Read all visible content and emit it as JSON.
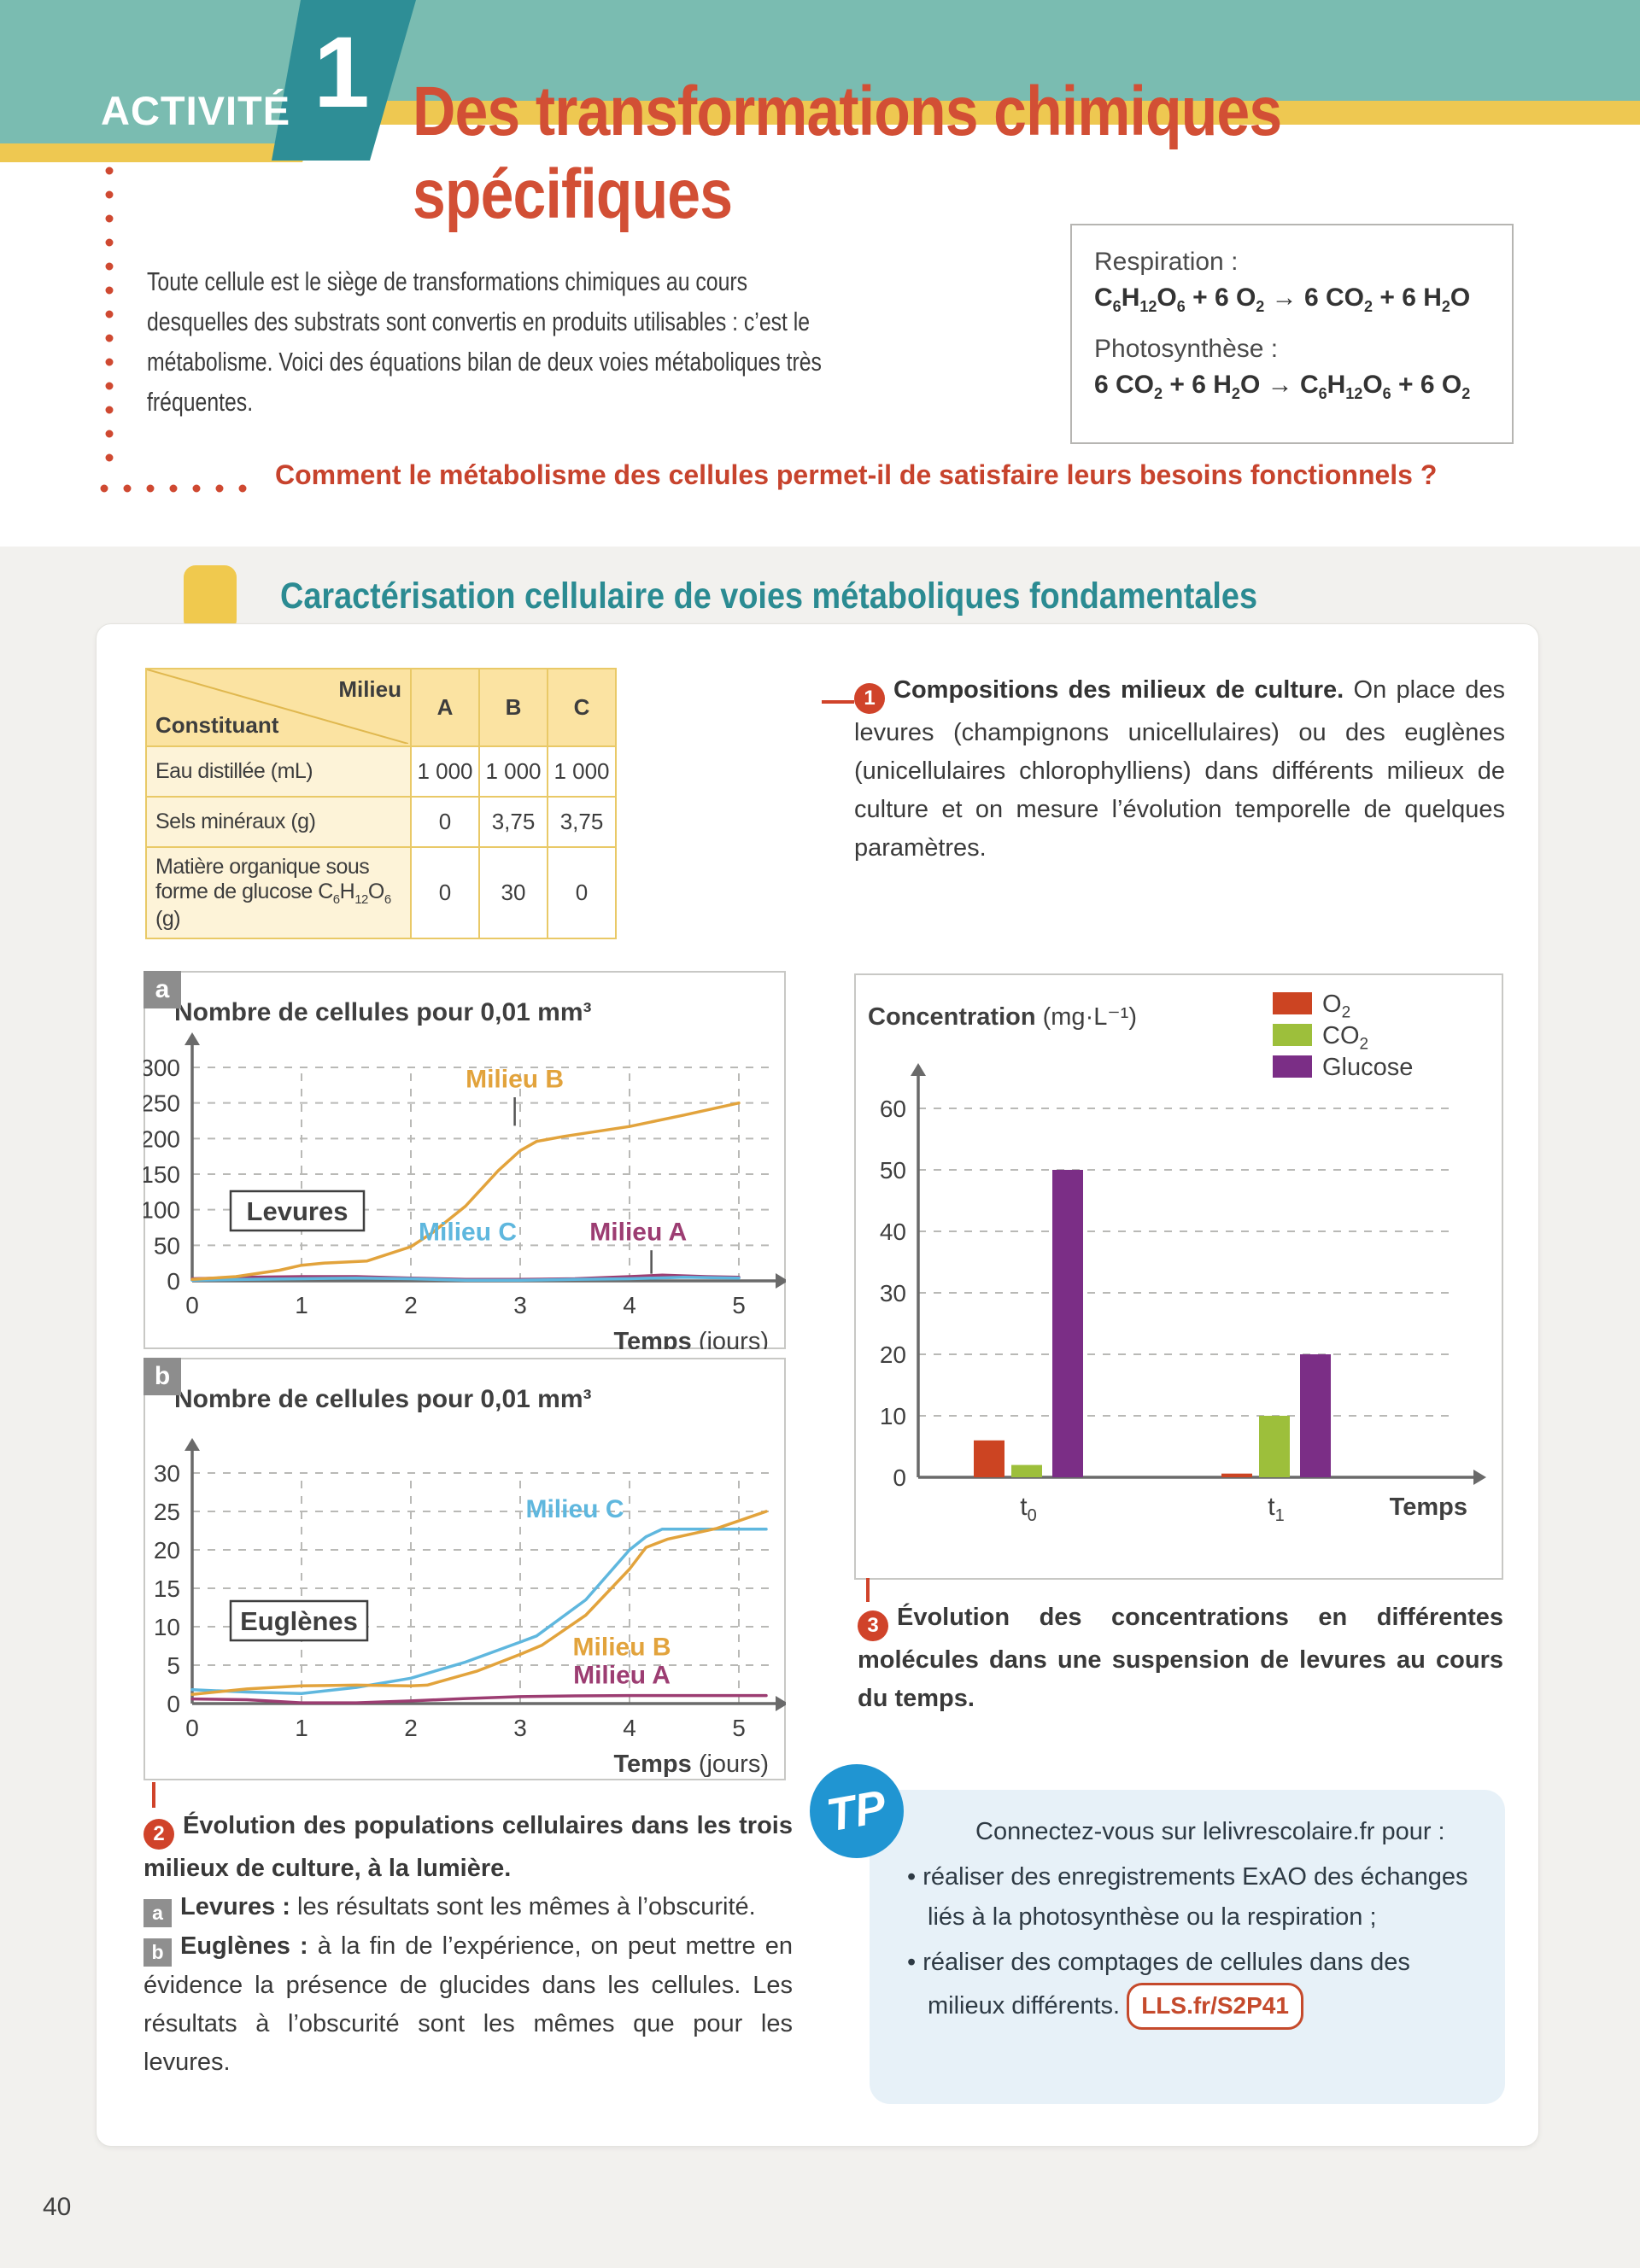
{
  "page": {
    "number": "40"
  },
  "colors": {
    "teal_light": "#7abcb1",
    "teal_dark": "#2e8e96",
    "yellow": "#eec851",
    "title_red": "#d24f35",
    "question_red": "#c7432d",
    "section_teal": "#2b8b92",
    "badge_red": "#d0432a",
    "badge_gray": "#8f8f8f",
    "milieu_b_orange": "#e2a33c",
    "milieu_c_blue": "#5fb7de",
    "milieu_a_purple": "#9c3d72",
    "bar_o2_red": "#cc4422",
    "bar_co2_green": "#9dbf3b",
    "bar_glucose_purple": "#7b2e86",
    "tp_blue": "#2095d2"
  },
  "header": {
    "activity_label": "ACTIVITÉ",
    "activity_number": "1",
    "title_line1": "Des transformations chimiques",
    "title_line2": "spécifiques",
    "intro": "Toute cellule est le siège de transformations chimiques au cours desquelles des substrats sont convertis en produits utilisables : c’est le métabolisme. Voici des équations bilan de deux voies métaboliques très fréquentes.",
    "equations_box": {
      "resp_label": "Respiration :",
      "resp_eq": "C|6|H|12|O|6| + 6 O|2| → 6 CO|2| + 6 H|2|O",
      "photo_label": "Photosynthèse :",
      "photo_eq": "6 CO|2| + 6 H|2|O → C|6|H|12|O|6| + 6 O|2|"
    },
    "question": "Comment le métabolisme des cellules permet-il de satisfaire leurs besoins fonctionnels ?"
  },
  "section": {
    "heading": "Caractérisation cellulaire de voies métaboliques fondamentales"
  },
  "table": {
    "corner_top": "Milieu",
    "corner_bottom": "Constituant",
    "columns": [
      "A",
      "B",
      "C"
    ],
    "rows": [
      {
        "label": "Eau distillée (mL)",
        "values": [
          "1 000",
          "1 000",
          "1 000"
        ]
      },
      {
        "label": "Sels minéraux (g)",
        "values": [
          "0",
          "3,75",
          "3,75"
        ]
      },
      {
        "label": "Matière organique sous forme de glucose C|6|H|12|O|6| (g)",
        "values": [
          "0",
          "30",
          "0"
        ]
      }
    ]
  },
  "doc1": {
    "badge": "1",
    "lead": "Compositions des milieux de culture.",
    "text": " On place des levures (champignons unicellulaires) ou des euglènes (unicellulaires chlorophylliens) dans différents milieux de culture et on mesure l’évolution temporelle de quelques paramètres."
  },
  "chart_data": [
    {
      "id": "levures",
      "type": "line",
      "panel_badge": "a",
      "title": "Nombre de cellules pour 0,01 mm³",
      "box_label": "Levures",
      "xlabel_bold": "Temps",
      "xlabel_normal": " (jours)",
      "x_ticks": [
        0,
        1,
        2,
        3,
        4,
        5
      ],
      "xlim": [
        0,
        5.3
      ],
      "ylim": [
        0,
        300
      ],
      "y_ticks": [
        0,
        50,
        100,
        150,
        200,
        250,
        300
      ],
      "grid": true,
      "series": [
        {
          "name": "Milieu A",
          "color": "#9c3d72",
          "points": [
            [
              0,
              3
            ],
            [
              0.5,
              5
            ],
            [
              1,
              6
            ],
            [
              1.5,
              6
            ],
            [
              2,
              4
            ],
            [
              2.5,
              2
            ],
            [
              3,
              2
            ],
            [
              3.5,
              3
            ],
            [
              4,
              6
            ],
            [
              4.3,
              8
            ],
            [
              4.7,
              6
            ],
            [
              5,
              5
            ]
          ]
        },
        {
          "name": "Milieu C",
          "color": "#5fb7de",
          "points": [
            [
              0,
              1
            ],
            [
              0.5,
              2
            ],
            [
              1,
              3
            ],
            [
              1.5,
              4
            ],
            [
              2,
              3
            ],
            [
              2.5,
              1
            ],
            [
              3,
              1
            ],
            [
              3.5,
              2
            ],
            [
              4,
              3
            ],
            [
              4.5,
              5
            ],
            [
              5,
              4
            ]
          ]
        },
        {
          "name": "Milieu B",
          "color": "#e2a33c",
          "points": [
            [
              0,
              2
            ],
            [
              0.4,
              6
            ],
            [
              0.8,
              15
            ],
            [
              1,
              22
            ],
            [
              1.2,
              25
            ],
            [
              1.6,
              28
            ],
            [
              2,
              48
            ],
            [
              2.2,
              68
            ],
            [
              2.5,
              105
            ],
            [
              2.8,
              155
            ],
            [
              3,
              183
            ],
            [
              3.15,
              196
            ],
            [
              3.4,
              203
            ],
            [
              4,
              217
            ],
            [
              4.5,
              233
            ],
            [
              5,
              250
            ]
          ]
        }
      ],
      "annotations": [
        {
          "text": "Milieu B",
          "color": "#e2a33c",
          "vx": 2.95,
          "vy": 272,
          "line": [
            2.95,
            258,
            218
          ]
        },
        {
          "text": "Milieu C",
          "color": "#5fb7de",
          "vx": 2.52,
          "vy": 57
        },
        {
          "text": "Milieu A",
          "color": "#9c3d72",
          "vx": 4.08,
          "vy": 57,
          "line": [
            4.2,
            43,
            10
          ]
        }
      ]
    },
    {
      "id": "euglenes",
      "type": "line",
      "panel_badge": "b",
      "title": "Nombre de cellules pour 0,01 mm³",
      "box_label": "Euglènes",
      "xlabel_bold": "Temps",
      "xlabel_normal": " (jours)",
      "x_ticks": [
        0,
        1,
        2,
        3,
        4,
        5
      ],
      "xlim": [
        0,
        5.3
      ],
      "ylim": [
        0,
        30
      ],
      "y_ticks": [
        0,
        5,
        10,
        15,
        20,
        25,
        30
      ],
      "grid": true,
      "series": [
        {
          "name": "Milieu A",
          "color": "#9c3d72",
          "points": [
            [
              0,
              0.6
            ],
            [
              0.5,
              0.5
            ],
            [
              1,
              0.1
            ],
            [
              1.5,
              0.1
            ],
            [
              2,
              0.35
            ],
            [
              2.5,
              0.65
            ],
            [
              3,
              0.9
            ],
            [
              3.5,
              1
            ],
            [
              4,
              1.05
            ],
            [
              4.6,
              1.05
            ],
            [
              5.25,
              1.05
            ]
          ]
        },
        {
          "name": "Milieu C",
          "color": "#5fb7de",
          "points": [
            [
              0,
              1.8
            ],
            [
              0.5,
              1.5
            ],
            [
              1,
              1.3
            ],
            [
              1.5,
              2.1
            ],
            [
              2,
              3.3
            ],
            [
              2.5,
              5.4
            ],
            [
              3,
              8
            ],
            [
              3.15,
              8.8
            ],
            [
              3.6,
              13.5
            ],
            [
              4,
              20
            ],
            [
              4.15,
              21.7
            ],
            [
              4.3,
              22.7
            ],
            [
              5.25,
              22.7
            ]
          ]
        },
        {
          "name": "Milieu B",
          "color": "#e2a33c",
          "points": [
            [
              0,
              1.2
            ],
            [
              0.5,
              1.9
            ],
            [
              1,
              2.3
            ],
            [
              1.5,
              2.4
            ],
            [
              2,
              2.3
            ],
            [
              2.15,
              2.4
            ],
            [
              2.6,
              4.2
            ],
            [
              3,
              6.4
            ],
            [
              3.2,
              7.6
            ],
            [
              3.6,
              11.5
            ],
            [
              4,
              17.5
            ],
            [
              4.15,
              20.3
            ],
            [
              4.35,
              21.4
            ],
            [
              4.8,
              22.8
            ],
            [
              5.25,
              25
            ]
          ]
        }
      ],
      "annotations": [
        {
          "text": "Milieu C",
          "color": "#5fb7de",
          "vx": 3.5,
          "vy": 24.2
        },
        {
          "text": "Milieu B",
          "color": "#e2a33c",
          "vx": 3.93,
          "vy": 6.3
        },
        {
          "text": "Milieu A",
          "color": "#9c3d72",
          "vx": 3.93,
          "vy": 2.6
        }
      ]
    },
    {
      "id": "concentrations",
      "type": "bar",
      "ylabel_bold": "Concentration",
      "ylabel_normal": " (mg·L⁻¹)",
      "xlabel": "Temps",
      "categories": [
        "t|0|",
        "t|1|"
      ],
      "y_ticks": [
        0,
        10,
        20,
        30,
        40,
        50,
        60
      ],
      "ylim": [
        0,
        65
      ],
      "grid": true,
      "legend_position": "top-right",
      "series": [
        {
          "name": "O|2|",
          "color": "#cc4422",
          "values": [
            6,
            0.6
          ]
        },
        {
          "name": "CO|2|",
          "color": "#9dbf3b",
          "values": [
            2,
            10
          ]
        },
        {
          "name": "Glucose",
          "color": "#7b2e86",
          "values": [
            50,
            20
          ]
        }
      ]
    }
  ],
  "caption2": {
    "badge": "2",
    "intro_bold": "Évolution des populations cellulaires dans les trois milieux de culture, à la lumière.",
    "items": [
      {
        "badge": "a",
        "lead": "Levures :",
        "text": " les résultats sont les mêmes à l’obscurité."
      },
      {
        "badge": "b",
        "lead": "Euglènes :",
        "text": " à la fin de l’expérience, on peut mettre en évidence la présence de glucides dans les cellules. Les résultats à l’obscurité sont les mêmes que pour les levures."
      }
    ]
  },
  "caption3": {
    "badge": "3",
    "text": "Évolution des concentrations en différentes molécules dans une suspension de levures au cours du temps."
  },
  "tp": {
    "logo": "TP",
    "intro": "Connectez-vous sur lelivrescolaire.fr pour :",
    "bullets": [
      "• réaliser des enregistrements ExAO des échanges liés à la photosynthèse ou la respiration ;",
      "• réaliser des comptages de cellules dans des milieux différents."
    ],
    "link": "LLS.fr/S2P41"
  }
}
